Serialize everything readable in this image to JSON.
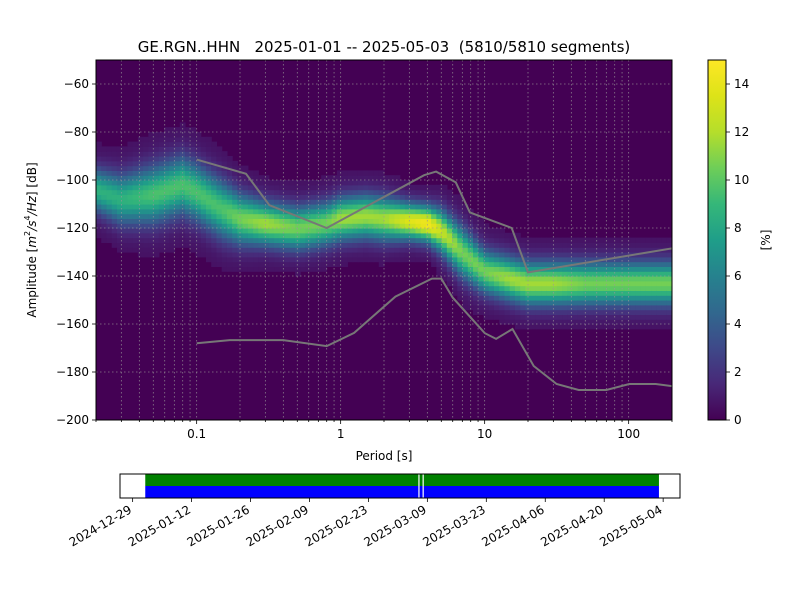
{
  "chart_data": [
    {
      "type": "heatmap",
      "title": "GE.RGN..HHN   2025-01-01 -- 2025-05-03  (5810/5810 segments)",
      "xlabel": "Period [s]",
      "ylabel_parts": [
        "Amplitude [",
        "m",
        "2",
        "/s",
        "4",
        "/Hz",
        "] [dB]"
      ],
      "xscale": "log",
      "xlim": [
        0.02,
        200
      ],
      "ylim": [
        -200,
        -50
      ],
      "x_ticks": [
        0.1,
        1,
        10,
        100
      ],
      "x_tick_labels": [
        "0.1",
        "1",
        "10",
        "100"
      ],
      "y_ticks": [
        -60,
        -80,
        -100,
        -120,
        -140,
        -160,
        -180,
        -200
      ],
      "y_tick_labels": [
        "−60",
        "−80",
        "−100",
        "−120",
        "−140",
        "−160",
        "−180",
        "−200"
      ],
      "grid": true,
      "colormap": "viridis",
      "colorbar": {
        "label": "[%]",
        "range": [
          0,
          15
        ],
        "ticks": [
          0,
          2,
          4,
          6,
          8,
          10,
          12,
          14
        ],
        "tick_labels": [
          "0",
          "2",
          "4",
          "6",
          "8",
          "10",
          "12",
          "14"
        ]
      },
      "density_ridge": {
        "period": [
          0.02,
          0.03,
          0.05,
          0.08,
          0.1,
          0.15,
          0.2,
          0.3,
          0.5,
          0.8,
          1.0,
          1.5,
          2.0,
          3.0,
          4.0,
          5.0,
          7.0,
          10,
          15,
          20,
          30,
          50,
          100,
          200
        ],
        "center_db": [
          -104,
          -108,
          -106,
          -102,
          -105,
          -112,
          -116,
          -118,
          -120,
          -118,
          -116,
          -115,
          -116,
          -117,
          -118,
          -121,
          -130,
          -138,
          -141,
          -143,
          -143,
          -143,
          -143,
          -143
        ],
        "width_db": [
          6,
          7,
          8,
          8,
          8,
          8,
          7,
          6,
          6,
          6,
          6,
          6,
          6,
          5,
          5,
          6,
          7,
          6,
          6,
          6,
          6,
          6,
          6,
          6
        ],
        "peak_percent": [
          8,
          8,
          9,
          9,
          9,
          9,
          10,
          11,
          10,
          10,
          11,
          11,
          11,
          13,
          14,
          12,
          10,
          10,
          11,
          11,
          11,
          10,
          10,
          10
        ]
      },
      "series": [
        {
          "name": "NHNM",
          "color": "#777777",
          "period": [
            0.1,
            0.22,
            0.32,
            0.8,
            3.8,
            4.6,
            6.3,
            7.9,
            15.4,
            20,
            354.8
          ],
          "db": [
            -91.5,
            -97.4,
            -110.5,
            -120,
            -98,
            -96.5,
            -101,
            -113.5,
            -120,
            -138.5,
            -126
          ]
        },
        {
          "name": "NLNM",
          "color": "#777777",
          "period": [
            0.1,
            0.17,
            0.4,
            0.8,
            1.24,
            2.4,
            4.3,
            5.0,
            6.0,
            10,
            12,
            15.6,
            21.9,
            31.6,
            45,
            70,
            101,
            154,
            328
          ],
          "db": [
            -168,
            -166.7,
            -166.7,
            -169.2,
            -163.7,
            -148.6,
            -141.1,
            -141.1,
            -149,
            -163.8,
            -166.2,
            -162.1,
            -177.5,
            -185,
            -187.5,
            -187.5,
            -185,
            -185,
            -187.5
          ]
        }
      ]
    },
    {
      "type": "timeline",
      "x_tick_labels": [
        "2024-12-29",
        "2025-01-12",
        "2025-01-26",
        "2025-02-09",
        "2025-02-23",
        "2025-03-09",
        "2025-03-23",
        "2025-04-06",
        "2025-04-20",
        "2025-05-04"
      ],
      "x_ticks_date": [
        "2024-12-29",
        "2025-01-12",
        "2025-01-26",
        "2025-02-09",
        "2025-02-23",
        "2025-03-09",
        "2025-03-23",
        "2025-04-06",
        "2025-04-20",
        "2025-05-04"
      ],
      "xlim": [
        "2024-12-26",
        "2025-05-08"
      ],
      "bars": [
        {
          "name": "processed",
          "color": "#008000",
          "start": "2025-01-01",
          "end": "2025-05-03"
        },
        {
          "name": "data",
          "color": "#0000ff",
          "start": "2025-01-01",
          "end": "2025-05-03"
        }
      ],
      "gaps": [
        "2025-03-07",
        "2025-03-08"
      ]
    }
  ]
}
